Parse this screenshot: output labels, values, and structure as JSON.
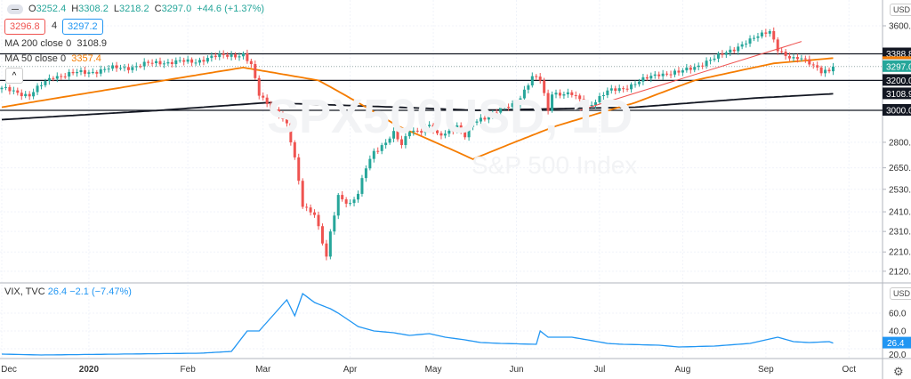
{
  "header": {
    "open_label": "O",
    "open": "3252.4",
    "high_label": "H",
    "high": "3308.2",
    "low_label": "L",
    "low": "3218.2",
    "close_label": "C",
    "close": "3297.0",
    "change": "+44.6 (+1.37%)",
    "bid": "3296.8",
    "spread": "4",
    "ask": "3297.2"
  },
  "indicators": {
    "ma200_label": "MA 200 close 0",
    "ma200_value": "3108.9",
    "ma50_label": "MA 50 close 0",
    "ma50_value": "3357.4",
    "vix_label": "VIX, TVC",
    "vix_value": "26.4",
    "vix_change": "−2.1 (−7.47%)"
  },
  "watermark": {
    "symbol": "SPX500USD, 1D",
    "name": "S&P 500 Index"
  },
  "price_axis": {
    "currency": "USD",
    "ticks": [
      "3600.0",
      "2800.0",
      "2650.0",
      "2530.0",
      "2410.0",
      "2310.0",
      "2210.0",
      "2120.0"
    ],
    "tick_values": [
      3600,
      2800,
      2650,
      2530,
      2410,
      2310,
      2210,
      2120
    ],
    "tags": [
      {
        "label": "3388.8",
        "value": 3388.8,
        "color": "#131722"
      },
      {
        "label": "3297.0",
        "value": 3297.0,
        "color": "#26a69a"
      },
      {
        "label": "3200.0",
        "value": 3200,
        "color": "#131722"
      },
      {
        "label": "3108.9",
        "value": 3108.9,
        "color": "#131722"
      },
      {
        "label": "3000.0",
        "value": 3000,
        "color": "#131722"
      }
    ]
  },
  "vix_axis": {
    "currency": "USD",
    "ticks": [
      "60.0",
      "40.0",
      "20.0"
    ],
    "tick_values": [
      60,
      40,
      20
    ],
    "last_label": "26.4",
    "last": 26.4
  },
  "time_axis": {
    "labels": [
      "Dec",
      "2020",
      "Feb",
      "Mar",
      "Apr",
      "May",
      "Jun",
      "Jul",
      "Aug",
      "Sep",
      "Oct"
    ],
    "days": [
      0,
      22,
      47,
      66,
      88,
      109,
      130,
      151,
      172,
      193,
      214
    ]
  },
  "chart_data": {
    "type": "candlestick",
    "symbol": "SPX500USD",
    "interval": "1D",
    "close_keypoints": [
      [
        0,
        3140
      ],
      [
        4,
        3120
      ],
      [
        7,
        3100
      ],
      [
        13,
        3230
      ],
      [
        22,
        3260
      ],
      [
        27,
        3280
      ],
      [
        34,
        3300
      ],
      [
        40,
        3330
      ],
      [
        48,
        3330
      ],
      [
        52,
        3360
      ],
      [
        58,
        3380
      ],
      [
        61,
        3385
      ],
      [
        63,
        3300
      ],
      [
        65,
        3100
      ],
      [
        67,
        3050
      ],
      [
        70,
        2980
      ],
      [
        72,
        2900
      ],
      [
        74,
        2700
      ],
      [
        76,
        2450
      ],
      [
        79,
        2400
      ],
      [
        81,
        2250
      ],
      [
        82,
        2180
      ],
      [
        83,
        2300
      ],
      [
        85,
        2500
      ],
      [
        88,
        2450
      ],
      [
        90,
        2500
      ],
      [
        92,
        2650
      ],
      [
        94,
        2750
      ],
      [
        97,
        2800
      ],
      [
        99,
        2850
      ],
      [
        101,
        2780
      ],
      [
        103,
        2880
      ],
      [
        106,
        2870
      ],
      [
        108,
        2900
      ],
      [
        110,
        2840
      ],
      [
        112,
        2860
      ],
      [
        115,
        2900
      ],
      [
        117,
        2830
      ],
      [
        119,
        2920
      ],
      [
        121,
        2950
      ],
      [
        126,
        3000
      ],
      [
        130,
        3050
      ],
      [
        134,
        3220
      ],
      [
        136,
        3200
      ],
      [
        138,
        3000
      ],
      [
        139,
        3120
      ],
      [
        144,
        3100
      ],
      [
        148,
        3030
      ],
      [
        153,
        3120
      ],
      [
        157,
        3150
      ],
      [
        162,
        3200
      ],
      [
        166,
        3250
      ],
      [
        171,
        3250
      ],
      [
        175,
        3300
      ],
      [
        180,
        3350
      ],
      [
        184,
        3420
      ],
      [
        189,
        3480
      ],
      [
        193,
        3560
      ],
      [
        194,
        3570
      ],
      [
        196,
        3420
      ],
      [
        198,
        3360
      ],
      [
        200,
        3350
      ],
      [
        202,
        3370
      ],
      [
        204,
        3330
      ],
      [
        207,
        3250
      ],
      [
        209,
        3260
      ],
      [
        210,
        3297
      ]
    ],
    "ma50": [
      [
        0,
        3020
      ],
      [
        30,
        3150
      ],
      [
        61,
        3290
      ],
      [
        80,
        3200
      ],
      [
        100,
        2900
      ],
      [
        119,
        2700
      ],
      [
        140,
        2900
      ],
      [
        160,
        3050
      ],
      [
        175,
        3200
      ],
      [
        195,
        3320
      ],
      [
        210,
        3357.4
      ]
    ],
    "ma200": [
      [
        0,
        2940
      ],
      [
        40,
        3000
      ],
      [
        67,
        3050
      ],
      [
        100,
        3020
      ],
      [
        120,
        3000
      ],
      [
        160,
        3020
      ],
      [
        190,
        3080
      ],
      [
        210,
        3108.9
      ]
    ],
    "horizontal_lines": [
      3388.8,
      3200,
      3000
    ],
    "trendline": [
      [
        146,
        3000
      ],
      [
        202,
        3480
      ]
    ],
    "vix": [
      [
        0,
        14
      ],
      [
        10,
        13
      ],
      [
        30,
        14
      ],
      [
        50,
        15
      ],
      [
        58,
        17
      ],
      [
        62,
        40
      ],
      [
        65,
        40
      ],
      [
        67,
        50
      ],
      [
        72,
        75
      ],
      [
        74,
        57
      ],
      [
        76,
        82
      ],
      [
        79,
        72
      ],
      [
        83,
        65
      ],
      [
        85,
        60
      ],
      [
        90,
        45
      ],
      [
        94,
        40
      ],
      [
        99,
        38
      ],
      [
        103,
        35
      ],
      [
        108,
        37
      ],
      [
        112,
        33
      ],
      [
        117,
        30
      ],
      [
        121,
        27
      ],
      [
        126,
        26
      ],
      [
        135,
        25
      ],
      [
        136,
        40
      ],
      [
        138,
        33
      ],
      [
        144,
        33
      ],
      [
        148,
        30
      ],
      [
        153,
        26
      ],
      [
        157,
        25
      ],
      [
        166,
        24
      ],
      [
        171,
        22
      ],
      [
        180,
        23
      ],
      [
        189,
        26
      ],
      [
        193,
        30
      ],
      [
        196,
        33
      ],
      [
        200,
        28
      ],
      [
        204,
        27
      ],
      [
        209,
        28
      ],
      [
        210,
        26.4
      ]
    ]
  }
}
